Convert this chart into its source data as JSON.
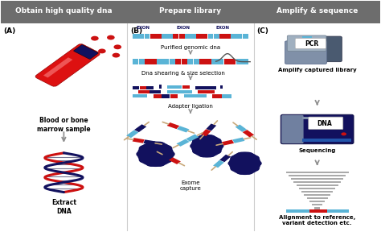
{
  "title_A": "Obtain high quality dna",
  "title_B": "Prepare library",
  "title_C": "Amplify & sequence",
  "label_A": "(A)",
  "label_B": "(B)",
  "label_C": "(C)",
  "text_blood": "Blood or bone\nmarrow sample",
  "text_extract": "Extract\nDNA",
  "text_purified": "Purified genomic dna",
  "text_shearing": "Dna shearing & size selection",
  "text_adapter": "Adapter ligation",
  "text_exome": "Exome\ncapture",
  "text_amplify": "Amplify captured library",
  "text_sequencing": "Sequencing",
  "text_alignment": "Alignment to reference,\nvariant detection etc.",
  "text_pcr": "PCR",
  "text_dna": "DNA",
  "header_color": "#6d6d6d",
  "dark_blue": "#12115e",
  "red": "#cc1111",
  "light_blue": "#5ab4d6",
  "gray": "#909090",
  "tan": "#c8a87a",
  "section_div1": 0.333,
  "section_div2": 0.667
}
